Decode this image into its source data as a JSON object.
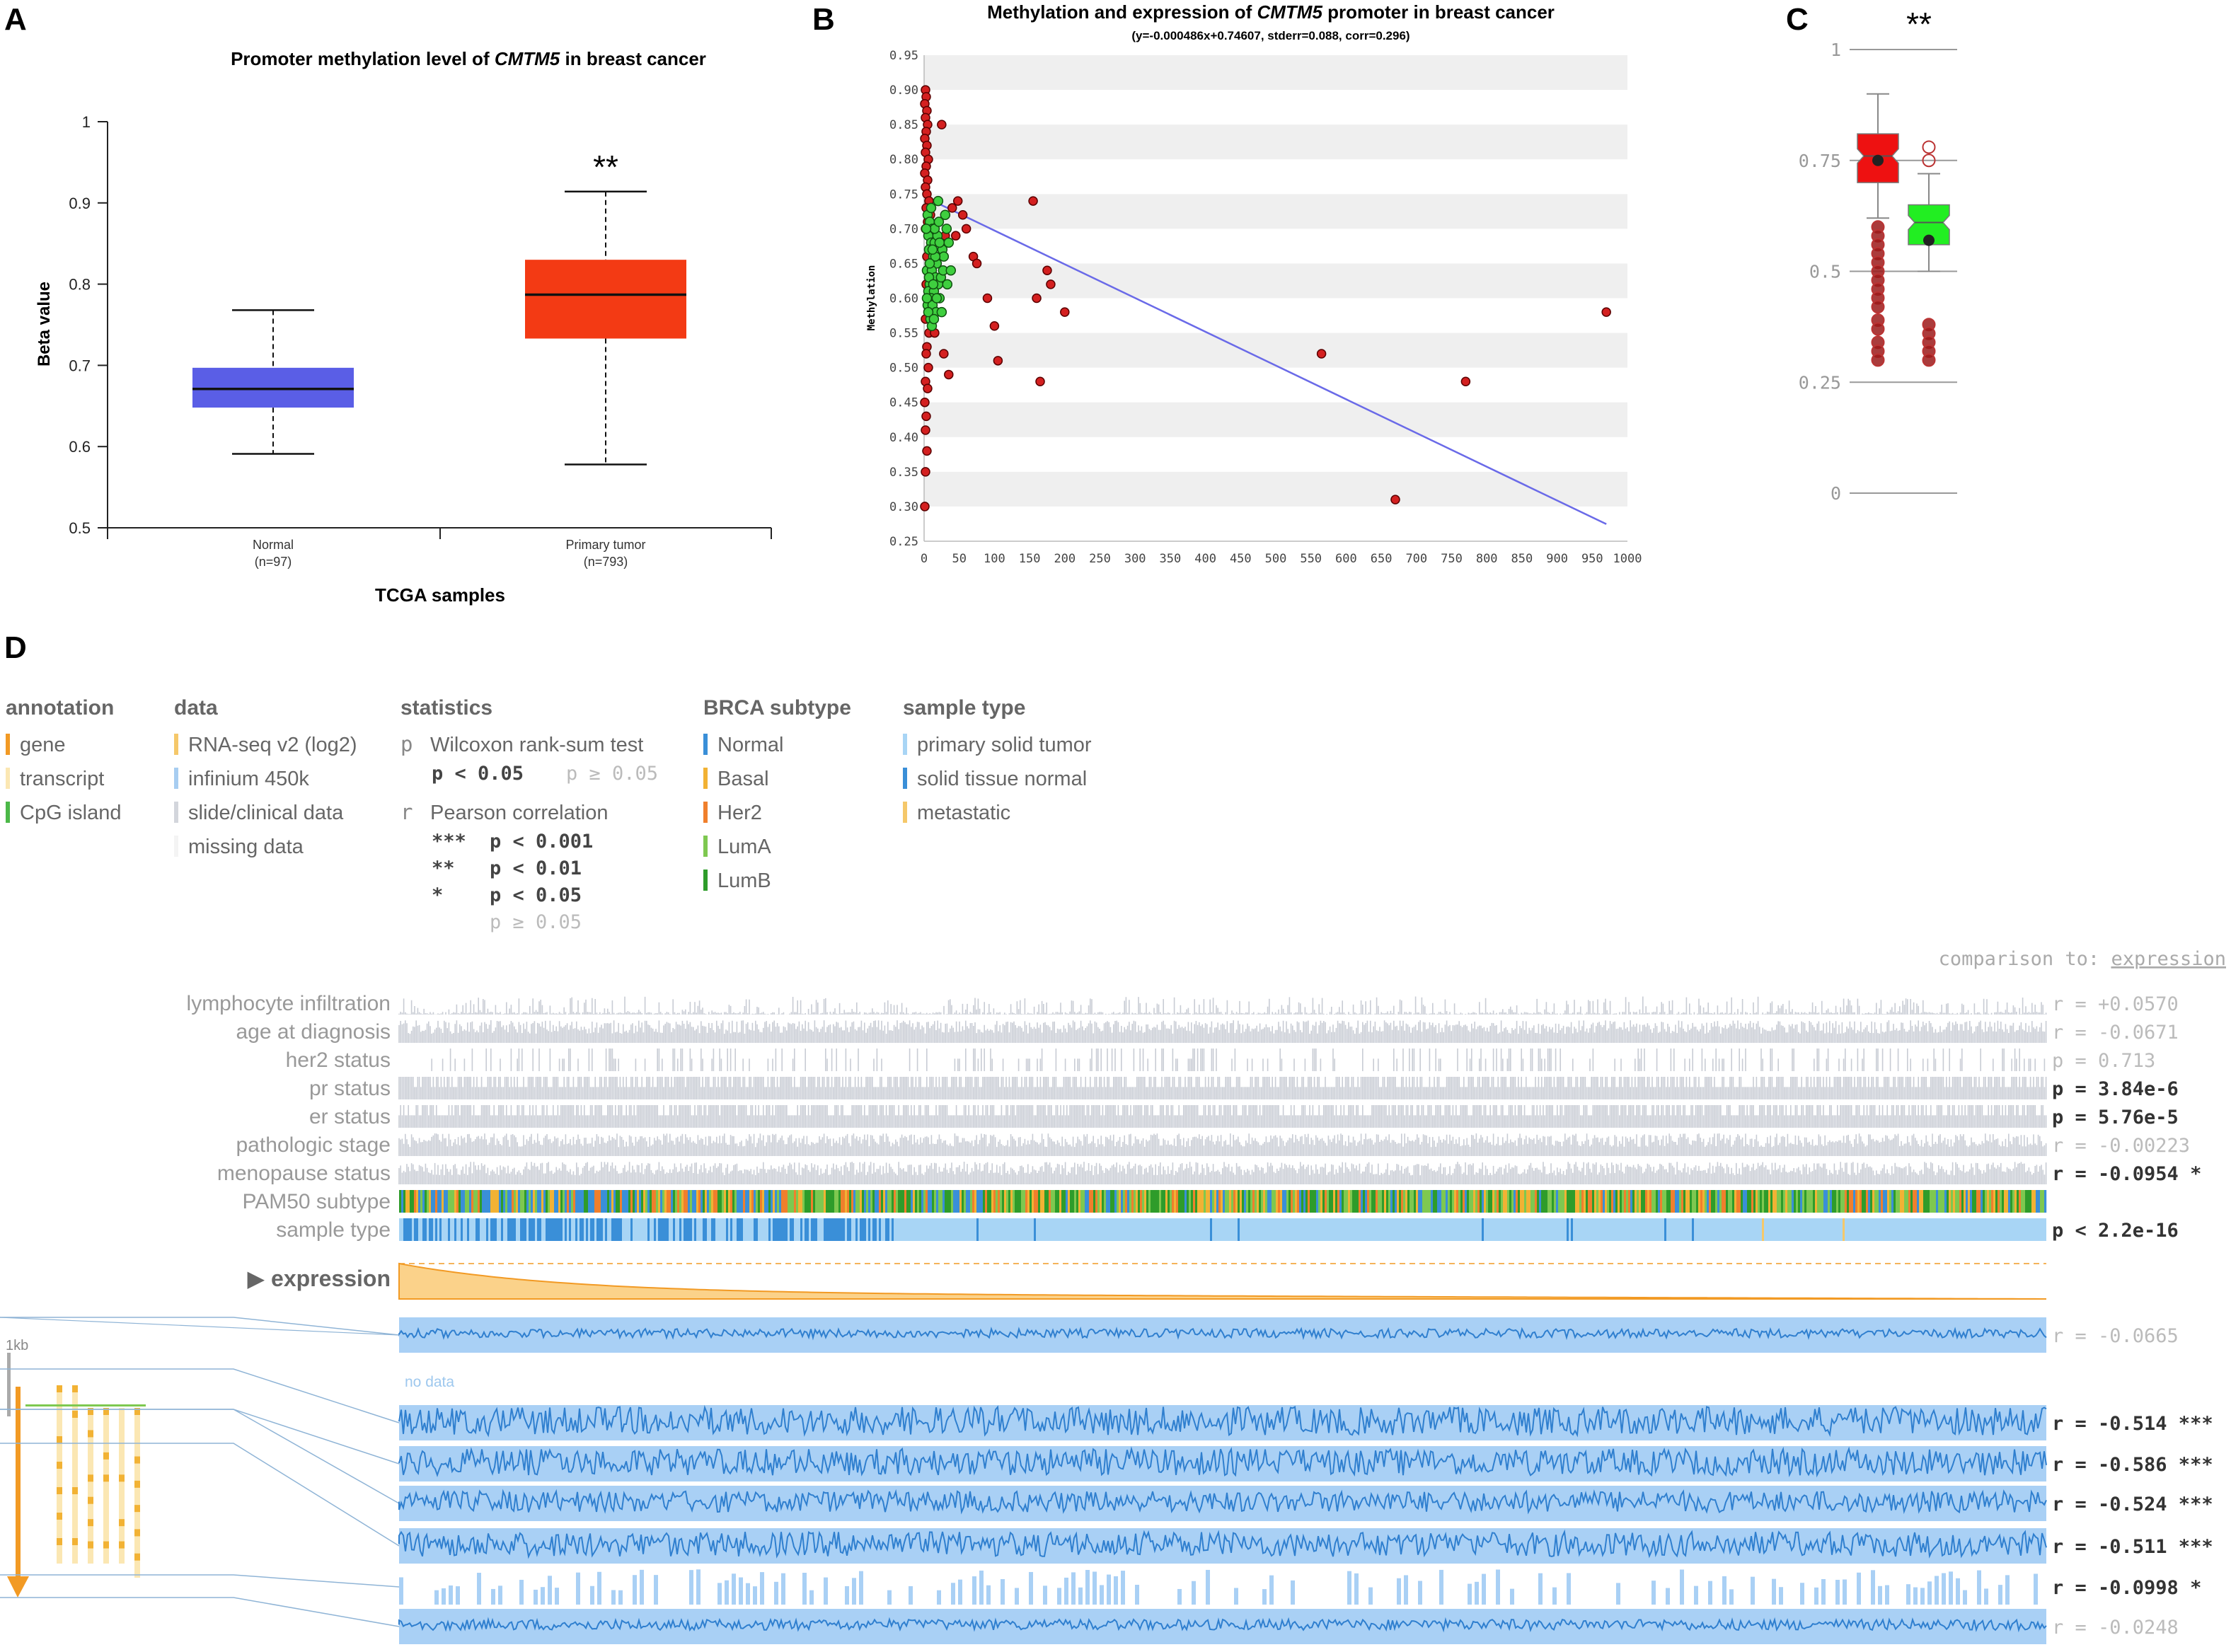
{
  "panel_labels": {
    "a": "A",
    "b": "B",
    "c": "C",
    "d": "D"
  },
  "chart_data": [
    {
      "type": "box",
      "panel": "A",
      "title_pre": "Promoter methylation level of ",
      "title_gene": "CMTM5",
      "title_post": " in breast cancer",
      "ylabel": "Beta value",
      "xlabel": "TCGA samples",
      "ylim": [
        0.5,
        1.0
      ],
      "yticks": [
        "0.5",
        "0.6",
        "0.7",
        "0.8",
        "0.9",
        "1"
      ],
      "significance": "**",
      "groups": [
        {
          "name": "Normal",
          "n": "(n=97)",
          "color": "#5a5ee6",
          "min": 0.591,
          "q1": 0.648,
          "median": 0.671,
          "q3": 0.697,
          "max": 0.768
        },
        {
          "name": "Primary tumor",
          "n": "(n=793)",
          "color": "#f33a14",
          "min": 0.578,
          "q1": 0.733,
          "median": 0.787,
          "q3": 0.83,
          "max": 0.914
        }
      ]
    },
    {
      "type": "scatter",
      "panel": "B",
      "title_pre": "Methylation and expression of ",
      "title_gene": "CMTM5",
      "title_post": " promoter in breast cancer",
      "subtitle": "(y=-0.000486x+0.74607, stderr=0.088, corr=0.296)",
      "ylabel": "Methylation",
      "xlim": [
        0,
        1000
      ],
      "ylim": [
        0.25,
        0.95
      ],
      "xticks": [
        "0",
        "50",
        "100",
        "150",
        "200",
        "250",
        "300",
        "350",
        "400",
        "450",
        "500",
        "550",
        "600",
        "650",
        "700",
        "750",
        "800",
        "850",
        "900",
        "950",
        "1000"
      ],
      "yticks": [
        "0.25",
        "0.30",
        "0.35",
        "0.40",
        "0.45",
        "0.50",
        "0.55",
        "0.60",
        "0.65",
        "0.70",
        "0.75",
        "0.80",
        "0.85",
        "0.90",
        "0.95"
      ],
      "regression": {
        "slope": -0.000486,
        "intercept": 0.74607
      },
      "red_points": [
        [
          2,
          0.9
        ],
        [
          3,
          0.89
        ],
        [
          1,
          0.88
        ],
        [
          4,
          0.87
        ],
        [
          2,
          0.86
        ],
        [
          5,
          0.85
        ],
        [
          3,
          0.84
        ],
        [
          1,
          0.83
        ],
        [
          4,
          0.82
        ],
        [
          2,
          0.81
        ],
        [
          6,
          0.8
        ],
        [
          3,
          0.79
        ],
        [
          1,
          0.78
        ],
        [
          5,
          0.77
        ],
        [
          2,
          0.76
        ],
        [
          4,
          0.75
        ],
        [
          7,
          0.74
        ],
        [
          3,
          0.73
        ],
        [
          9,
          0.72
        ],
        [
          5,
          0.71
        ],
        [
          2,
          0.7
        ],
        [
          8,
          0.69
        ],
        [
          11,
          0.67
        ],
        [
          4,
          0.66
        ],
        [
          6,
          0.64
        ],
        [
          3,
          0.62
        ],
        [
          10,
          0.61
        ],
        [
          5,
          0.59
        ],
        [
          2,
          0.57
        ],
        [
          7,
          0.55
        ],
        [
          4,
          0.53
        ],
        [
          3,
          0.52
        ],
        [
          6,
          0.5
        ],
        [
          2,
          0.48
        ],
        [
          5,
          0.47
        ],
        [
          1,
          0.45
        ],
        [
          3,
          0.43
        ],
        [
          2,
          0.41
        ],
        [
          4,
          0.38
        ],
        [
          2,
          0.35
        ],
        [
          1,
          0.3
        ],
        [
          25,
          0.85
        ],
        [
          30,
          0.69
        ],
        [
          40,
          0.73
        ],
        [
          45,
          0.69
        ],
        [
          48,
          0.74
        ],
        [
          55,
          0.72
        ],
        [
          60,
          0.7
        ],
        [
          70,
          0.66
        ],
        [
          75,
          0.65
        ],
        [
          90,
          0.6
        ],
        [
          100,
          0.56
        ],
        [
          105,
          0.51
        ],
        [
          155,
          0.74
        ],
        [
          160,
          0.6
        ],
        [
          165,
          0.48
        ],
        [
          175,
          0.64
        ],
        [
          180,
          0.62
        ],
        [
          200,
          0.58
        ],
        [
          20,
          0.6
        ],
        [
          15,
          0.55
        ],
        [
          35,
          0.49
        ],
        [
          28,
          0.52
        ],
        [
          565,
          0.52
        ],
        [
          670,
          0.31
        ],
        [
          770,
          0.48
        ],
        [
          970,
          0.58
        ]
      ],
      "green_points": [
        [
          5,
          0.72
        ],
        [
          8,
          0.71
        ],
        [
          12,
          0.7
        ],
        [
          6,
          0.69
        ],
        [
          10,
          0.68
        ],
        [
          15,
          0.68
        ],
        [
          7,
          0.67
        ],
        [
          13,
          0.66
        ],
        [
          9,
          0.65
        ],
        [
          18,
          0.65
        ],
        [
          4,
          0.64
        ],
        [
          11,
          0.64
        ],
        [
          16,
          0.63
        ],
        [
          8,
          0.62
        ],
        [
          20,
          0.62
        ],
        [
          6,
          0.61
        ],
        [
          14,
          0.61
        ],
        [
          10,
          0.6
        ],
        [
          22,
          0.6
        ],
        [
          5,
          0.59
        ],
        [
          12,
          0.59
        ],
        [
          17,
          0.58
        ],
        [
          9,
          0.57
        ],
        [
          24,
          0.63
        ],
        [
          26,
          0.67
        ],
        [
          19,
          0.69
        ],
        [
          15,
          0.7
        ],
        [
          21,
          0.71
        ],
        [
          3,
          0.7
        ],
        [
          7,
          0.63
        ],
        [
          13,
          0.62
        ],
        [
          28,
          0.66
        ],
        [
          30,
          0.72
        ],
        [
          25,
          0.58
        ],
        [
          11,
          0.56
        ],
        [
          16,
          0.66
        ],
        [
          22,
          0.68
        ],
        [
          8,
          0.65
        ],
        [
          18,
          0.6
        ],
        [
          27,
          0.64
        ],
        [
          32,
          0.7
        ],
        [
          35,
          0.68
        ],
        [
          4,
          0.6
        ],
        [
          6,
          0.58
        ],
        [
          14,
          0.57
        ],
        [
          10,
          0.73
        ],
        [
          20,
          0.74
        ],
        [
          33,
          0.62
        ],
        [
          38,
          0.64
        ],
        [
          12,
          0.67
        ]
      ]
    },
    {
      "type": "box",
      "panel": "C",
      "significance": "**",
      "ylim": [
        0,
        1
      ],
      "yticks": [
        "0",
        "0.25",
        "0.5",
        "0.75",
        "1"
      ],
      "groups": [
        {
          "color": "#ee1111",
          "min": 0.62,
          "q1": 0.7,
          "median": 0.76,
          "q3": 0.81,
          "max": 0.9,
          "mean": 0.75,
          "outliers": [
            0.6,
            0.58,
            0.56,
            0.54,
            0.52,
            0.5,
            0.48,
            0.46,
            0.44,
            0.42,
            0.39,
            0.37,
            0.34,
            0.32,
            0.3
          ]
        },
        {
          "color": "#22ee22",
          "min": 0.5,
          "q1": 0.56,
          "median": 0.61,
          "q3": 0.65,
          "max": 0.72,
          "mean": 0.57,
          "outliers": [
            0.75,
            0.78,
            0.38,
            0.36,
            0.34,
            0.32,
            0.3
          ]
        }
      ]
    }
  ],
  "legend": {
    "annotation": {
      "title": "annotation",
      "items": [
        {
          "label": "gene",
          "color": "#f29a24"
        },
        {
          "label": "transcript",
          "color": "#fbe7b3"
        },
        {
          "label": "CpG island",
          "color": "#4cb848"
        }
      ]
    },
    "data": {
      "title": "data",
      "items": [
        {
          "label": "RNA-seq v2 (log2)",
          "color": "#f5c86a"
        },
        {
          "label": "infinium 450k",
          "color": "#a7cdf1"
        },
        {
          "label": "slide/clinical data",
          "color": "#d3d6dc"
        },
        {
          "label": "missing data",
          "color": "#f4f4f4"
        }
      ]
    },
    "statistics": {
      "title": "statistics",
      "wilcoxon": {
        "symbol": "p",
        "label": "Wilcoxon rank-sum test",
        "sig": "p < 0.05",
        "nonsig": "p ≥ 0.05"
      },
      "pearson": {
        "symbol": "r",
        "label": "Pearson correlation",
        "rows": [
          {
            "stars": "***",
            "text": "p < 0.001"
          },
          {
            "stars": "**",
            "text": "p < 0.01"
          },
          {
            "stars": "*",
            "text": "p < 0.05"
          }
        ],
        "nonsig": "p ≥ 0.05"
      }
    },
    "brca": {
      "title": "BRCA subtype",
      "items": [
        {
          "label": "Normal",
          "color": "#3a8fd8"
        },
        {
          "label": "Basal",
          "color": "#f2b234"
        },
        {
          "label": "Her2",
          "color": "#f07f2c"
        },
        {
          "label": "LumA",
          "color": "#7ec850"
        },
        {
          "label": "LumB",
          "color": "#2e9c2a"
        }
      ]
    },
    "sampletype": {
      "title": "sample type",
      "items": [
        {
          "label": "primary solid tumor",
          "color": "#a8d5f5"
        },
        {
          "label": "solid tissue normal",
          "color": "#3a8fd8"
        },
        {
          "label": "metastatic",
          "color": "#f5c86a"
        }
      ]
    }
  },
  "heatmap": {
    "comparison_prefix": "comparison to: ",
    "comparison_target": "expression",
    "tracks": [
      {
        "label": "lymphocyte infiltration",
        "stat": "r = +0.0570",
        "strong": false
      },
      {
        "label": "age at diagnosis",
        "stat": "r = -0.0671",
        "strong": false
      },
      {
        "label": "her2 status",
        "stat": "p = 0.713",
        "strong": false
      },
      {
        "label": "pr status",
        "stat": "p = 3.84e-6",
        "strong": true
      },
      {
        "label": "er status",
        "stat": "p = 5.76e-5",
        "strong": true
      },
      {
        "label": "pathologic stage",
        "stat": "r = -0.00223",
        "strong": false
      },
      {
        "label": "menopause status",
        "stat": "r = -0.0954 *",
        "strong": true
      },
      {
        "label": "PAM50 subtype",
        "stat": "",
        "strong": false
      },
      {
        "label": "sample type",
        "stat": "p < 2.2e-16",
        "strong": true
      }
    ],
    "expression_label": "▶ expression",
    "scale_label": "1kb",
    "no_data": "no data",
    "methylation_rows": [
      {
        "stat": "r = -0.0665",
        "strong": false,
        "amplitude": 0.25,
        "sparse": false
      },
      {
        "stat": "r = -0.514 ***",
        "strong": true,
        "amplitude": 0.8,
        "sparse": false
      },
      {
        "stat": "r = -0.586 ***",
        "strong": true,
        "amplitude": 0.75,
        "sparse": false
      },
      {
        "stat": "r = -0.524 ***",
        "strong": true,
        "amplitude": 0.6,
        "sparse": false
      },
      {
        "stat": "r = -0.511 ***",
        "strong": true,
        "amplitude": 0.7,
        "sparse": false
      },
      {
        "stat": "r = -0.0998 *",
        "strong": true,
        "amplitude": 0.7,
        "sparse": true
      },
      {
        "stat": "r = -0.0248",
        "strong": false,
        "amplitude": 0.3,
        "sparse": false
      }
    ]
  }
}
